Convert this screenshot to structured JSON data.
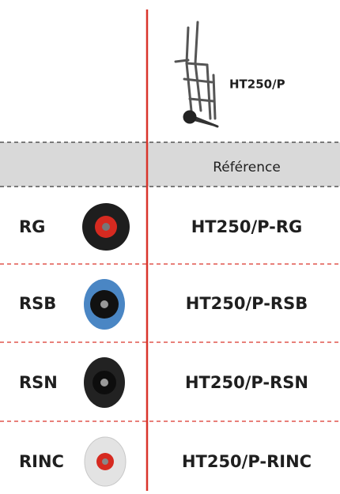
{
  "header": {
    "product": "HT250/P"
  },
  "table": {
    "column_header": "Référence",
    "rows": [
      {
        "code": "RG",
        "reference": "HT250/P-RG"
      },
      {
        "code": "RSB",
        "reference": "HT250/P-RSB"
      },
      {
        "code": "RSN",
        "reference": "HT250/P-RSN"
      },
      {
        "code": "RINC",
        "reference": "HT250/P-RINC"
      }
    ]
  }
}
